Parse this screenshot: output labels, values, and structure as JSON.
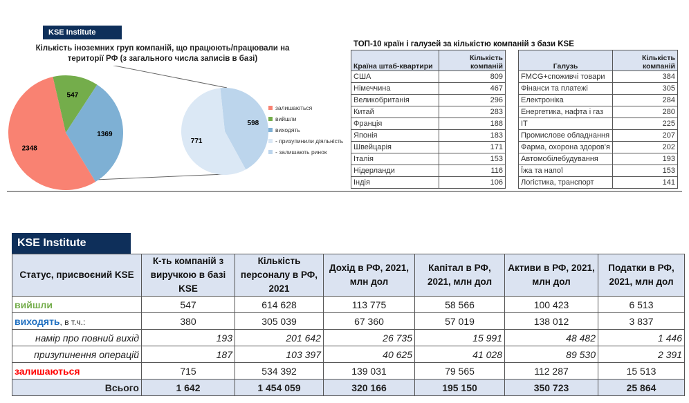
{
  "brand": "KSE Institute",
  "chart_data": {
    "type": "pie",
    "title": "Кількість іноземних груп компаній, що працюють/працювали на території РФ (з загального числа записів в базі)",
    "main": [
      {
        "label": "залишаються",
        "value": 2348,
        "color": "#f98272"
      },
      {
        "label": "вийшли",
        "value": 547,
        "color": "#74ad4b"
      },
      {
        "label": "виходять",
        "value": 1369,
        "color": "#7eb0d4"
      }
    ],
    "breakdown": [
      {
        "label": "- призупинили діяльність",
        "value": 771,
        "color": "#dbe8f5"
      },
      {
        "label": "- залишають ринок",
        "value": 598,
        "color": "#bcd5ec"
      }
    ]
  },
  "top10": {
    "title": "ТОП-10 країн і галузей за кількістю компаній з бази KSE",
    "countries": {
      "headers": [
        "Країна штаб-квартири",
        "Кількість компаній"
      ],
      "rows": [
        [
          "США",
          "809"
        ],
        [
          "Німеччина",
          "467"
        ],
        [
          "Великобританія",
          "296"
        ],
        [
          "Китай",
          "283"
        ],
        [
          "Франція",
          "188"
        ],
        [
          "Японія",
          "183"
        ],
        [
          "Швейцарія",
          "171"
        ],
        [
          "Італія",
          "153"
        ],
        [
          "Нідерланди",
          "116"
        ],
        [
          "Індія",
          "106"
        ]
      ]
    },
    "industries": {
      "headers": [
        "Галузь",
        "Кількість компаній"
      ],
      "rows": [
        [
          "FMCG+споживчі товари",
          "384"
        ],
        [
          "Фінанси та платежі",
          "305"
        ],
        [
          "Електроніка",
          "284"
        ],
        [
          "Енергетика, нафта і газ",
          "280"
        ],
        [
          "IT",
          "225"
        ],
        [
          "Промислове обладнання",
          "207"
        ],
        [
          "Фарма, охорона здоров'я",
          "202"
        ],
        [
          "Автомобілебудування",
          "193"
        ],
        [
          "Їжа та напої",
          "153"
        ],
        [
          "Логістика, транспорт",
          "141"
        ]
      ]
    }
  },
  "status_table": {
    "headers": [
      "Статус, присвоєний KSE",
      "К-ть компаній з виручкою в базі KSE",
      "Кількість персоналу в РФ, 2021",
      "Дохід в РФ, 2021, млн дол",
      "Капітал в РФ, 2021, млн дол",
      "Активи в РФ, 2021, млн дол",
      "Податки в РФ, 2021, млн дол"
    ],
    "rows": [
      {
        "label": "вийшли",
        "suffix": "",
        "color": "#74ad4b",
        "values": [
          "547",
          "614 628",
          "113 775",
          "58 566",
          "100 423",
          "6 513"
        ]
      },
      {
        "label": "виходять",
        "suffix": ", в т.ч.:",
        "color": "#1f6fc0",
        "values": [
          "380",
          "305 039",
          "67 360",
          "57 019",
          "138 012",
          "3 837"
        ]
      },
      {
        "label": "намір про повний вихід",
        "values": [
          "193",
          "201 642",
          "26 735",
          "15 991",
          "48 482",
          "1 446"
        ]
      },
      {
        "label": "призупинення операцій",
        "values": [
          "187",
          "103 397",
          "40 625",
          "41 028",
          "89 530",
          "2 391"
        ]
      },
      {
        "label": "залишаються",
        "suffix": "",
        "color": "#ff0000",
        "values": [
          "715",
          "534 392",
          "139 031",
          "79 565",
          "112 287",
          "15 513"
        ]
      },
      {
        "label": "Всього",
        "values": [
          "1 642",
          "1 454 059",
          "320 166",
          "195 150",
          "350 723",
          "25 864"
        ]
      }
    ]
  }
}
